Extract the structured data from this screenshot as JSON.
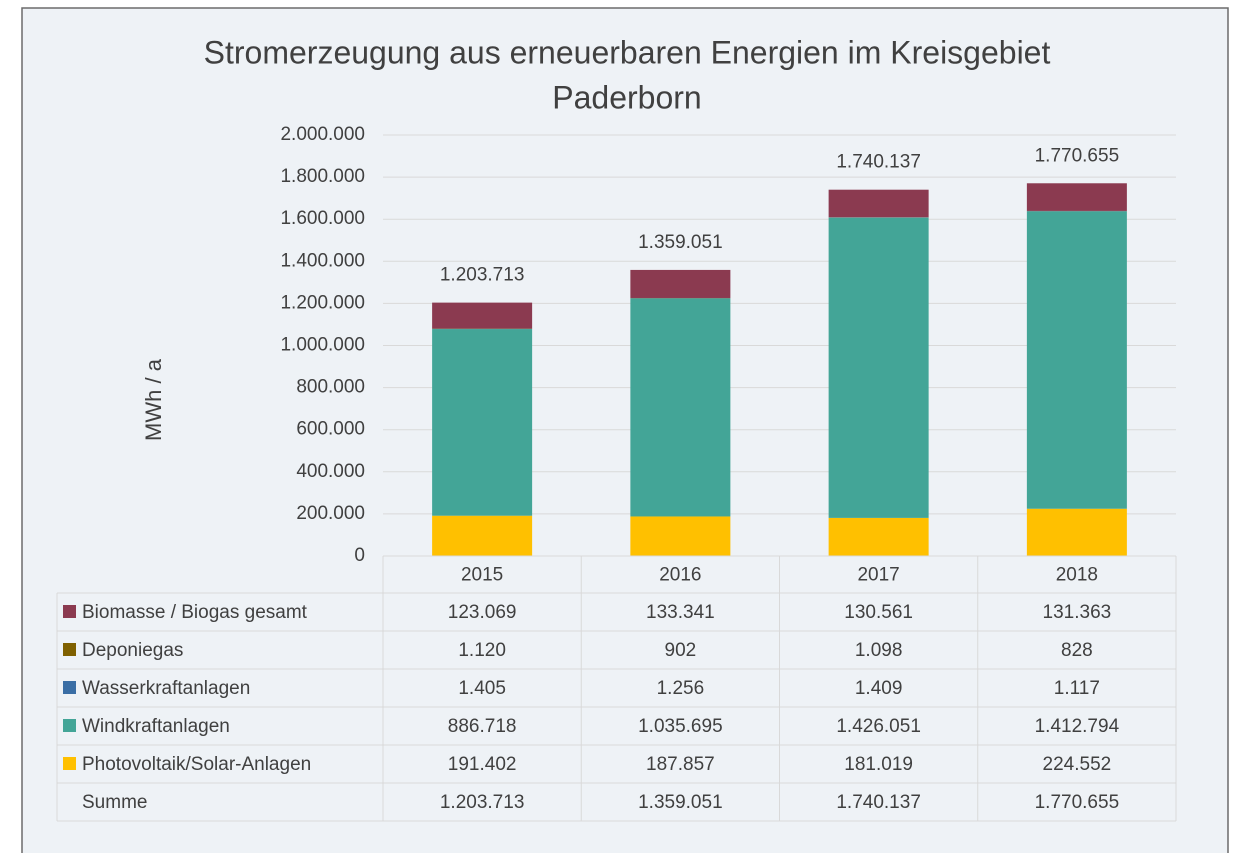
{
  "chart_data": {
    "type": "stacked_bar",
    "title": "Stromerzeugung aus erneuerbaren Energien im Kreisgebiet Paderborn",
    "y_label": "MWh / a",
    "categories": [
      "2015",
      "2016",
      "2017",
      "2018"
    ],
    "ylim": [
      0,
      2000000
    ],
    "yticks": [
      0,
      {
        "value": 200000,
        "label": "200.000"
      },
      {
        "value": 400000,
        "label": "400.000"
      },
      {
        "value": 600000,
        "label": "600.000"
      },
      {
        "value": 800000,
        "label": "800.000"
      },
      {
        "value": 1000000,
        "label": "1.000.000"
      },
      {
        "value": 1200000,
        "label": "1.200.000"
      },
      {
        "value": 1400000,
        "label": "1.400.000"
      },
      {
        "value": 1600000,
        "label": "1.600.000"
      },
      {
        "value": 1800000,
        "label": "1.800.000"
      },
      {
        "value": 2000000,
        "label": "2.000.000"
      }
    ],
    "grid": true,
    "series": [
      {
        "name": "Biomasse / Biogas gesamt",
        "color": "#8b3a50",
        "values": [
          123069,
          133341,
          130561,
          131363
        ],
        "value_labels": [
          "123.069",
          "133.341",
          "130.561",
          "131.363"
        ]
      },
      {
        "name": "Deponiegas",
        "color": "#7f6000",
        "values": [
          1120,
          902,
          1098,
          828
        ],
        "value_labels": [
          "1.120",
          "902",
          "1.098",
          "828"
        ]
      },
      {
        "name": "Wasserkraftanlagen",
        "color": "#3a6ea5",
        "values": [
          1405,
          1256,
          1409,
          1117
        ],
        "value_labels": [
          "1.405",
          "1.256",
          "1.409",
          "1.117"
        ]
      },
      {
        "name": "Windkraftanlagen",
        "color": "#43a597",
        "values": [
          886718,
          1035695,
          1426051,
          1412794
        ],
        "value_labels": [
          "886.718",
          "1.035.695",
          "1.426.051",
          "1.412.794"
        ]
      },
      {
        "name": "Photovoltaik/Solar-Anlagen",
        "color": "#ffc000",
        "values": [
          191402,
          187857,
          181019,
          224552
        ],
        "value_labels": [
          "191.402",
          "187.857",
          "181.019",
          "224.552"
        ]
      }
    ],
    "totals": {
      "name": "Summe",
      "values": [
        1203713,
        1359051,
        1740137,
        1770655
      ],
      "value_labels": [
        "1.203.713",
        "1.359.051",
        "1.740.137",
        "1.770.655"
      ]
    }
  }
}
